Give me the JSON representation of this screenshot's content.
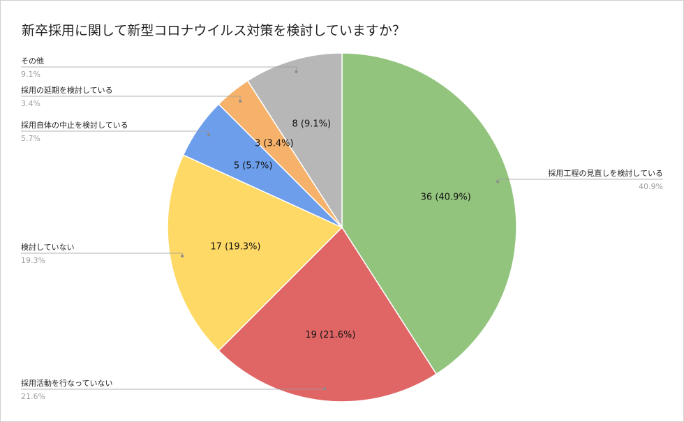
{
  "chart_data": {
    "type": "pie",
    "title": "新卒採用に関して新型コロナウイルス対策を検討していますか？",
    "slices": [
      {
        "name": "採用工程の見直しを検討している",
        "value": 36,
        "percent": "40.9%",
        "label": "36 (40.9%)",
        "color": "#93c47d"
      },
      {
        "name": "採用活動を行なっていない",
        "value": 19,
        "percent": "21.6%",
        "label": "19 (21.6%)",
        "color": "#e06666"
      },
      {
        "name": "検討していない",
        "value": 17,
        "percent": "19.3%",
        "label": "17 (19.3%)",
        "color": "#ffd966"
      },
      {
        "name": "採用自体の中止を検討している",
        "value": 5,
        "percent": "5.7%",
        "label": "5 (5.7%)",
        "color": "#6d9eeb"
      },
      {
        "name": "採用の延期を検討している",
        "value": 3,
        "percent": "3.4%",
        "label": "3 (3.4%)",
        "color": "#f6b26b"
      },
      {
        "name": "その他",
        "value": 8,
        "percent": "9.1%",
        "label": "8 (9.1%)",
        "color": "#b7b7b7"
      }
    ],
    "legend": "external-labels"
  }
}
